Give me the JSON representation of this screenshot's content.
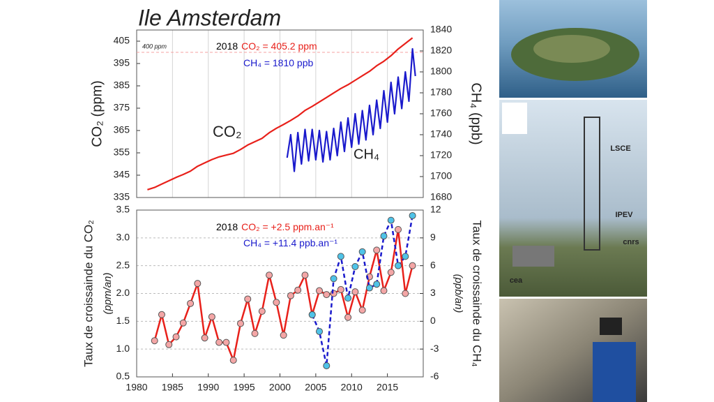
{
  "chart_data": [
    {
      "type": "line",
      "title": "Ile Amsterdam",
      "ylabel": [
        "CO₂ (ppm)"
      ],
      "y2label": [
        "CH₄ (ppb)"
      ],
      "xlim": [
        1980,
        2020
      ],
      "xticks": [
        1985,
        1990,
        1995,
        2000,
        2005,
        2010,
        2015
      ],
      "show_xtick_labels": false,
      "grid_x": true,
      "grid_y": false,
      "ylim": [
        335,
        410
      ],
      "yticks": [
        335,
        345,
        355,
        365,
        375,
        385,
        395,
        405
      ],
      "y2lim": [
        1680,
        1840
      ],
      "y2ticks": [
        1680,
        1700,
        1720,
        1740,
        1760,
        1780,
        1800,
        1820,
        1840
      ],
      "reference_lines": [
        {
          "value": 400,
          "label": "400 ppm",
          "color": "#f4a0a0"
        }
      ],
      "annotations": [
        {
          "parts": [
            "2018",
            "CO₂ = 405.2 ppm"
          ],
          "colors": [
            "#000000",
            "#e8201a"
          ]
        },
        {
          "parts": [
            "CH₄ = 1810 ppb"
          ],
          "colors": [
            "#1a1acc"
          ]
        }
      ],
      "series": [
        {
          "name": "CO₂",
          "color": "#e8201a",
          "axis": "y",
          "x": [
            1981.5,
            1982.5,
            1983.5,
            1984.5,
            1985.5,
            1986.5,
            1987.5,
            1988.5,
            1989.5,
            1990.5,
            1991.5,
            1992.5,
            1993.5,
            1994.5,
            1995.5,
            1996.5,
            1997.5,
            1998.5,
            1999.5,
            2000.5,
            2001.5,
            2002.5,
            2003.5,
            2004.5,
            2005.5,
            2006.5,
            2007.5,
            2008.5,
            2009.5,
            2010.5,
            2011.5,
            2012.5,
            2013.5,
            2014.5,
            2015.5,
            2016.5,
            2017.5,
            2018.5
          ],
          "values": [
            338.5,
            339.5,
            341,
            342.5,
            344,
            345.3,
            346.8,
            349,
            350.5,
            352,
            353.2,
            354,
            354.8,
            356.5,
            358.5,
            360,
            361.5,
            364,
            366,
            367.7,
            369.5,
            371.5,
            374,
            375.8,
            377.8,
            379.8,
            381.8,
            383.8,
            385.5,
            387.5,
            389.5,
            391.5,
            394,
            396,
            398.5,
            401.5,
            404,
            406.5
          ]
        },
        {
          "name": "CH₄",
          "color": "#1a1acc",
          "axis": "y2",
          "x": [
            2001,
            2001.5,
            2002,
            2002.5,
            2003,
            2003.5,
            2004,
            2004.5,
            2005,
            2005.5,
            2006,
            2006.5,
            2007,
            2007.5,
            2008,
            2008.5,
            2009,
            2009.5,
            2010,
            2010.5,
            2011,
            2011.5,
            2012,
            2012.5,
            2013,
            2013.5,
            2014,
            2014.5,
            2015,
            2015.5,
            2016,
            2016.5,
            2017,
            2017.5,
            2018,
            2018.5,
            2018.9
          ],
          "values": [
            1718,
            1740,
            1705,
            1742,
            1712,
            1745,
            1715,
            1745,
            1716,
            1744,
            1714,
            1743,
            1716,
            1746,
            1720,
            1752,
            1724,
            1756,
            1728,
            1760,
            1731,
            1763,
            1735,
            1768,
            1740,
            1773,
            1746,
            1782,
            1752,
            1790,
            1760,
            1795,
            1765,
            1800,
            1772,
            1822,
            1796
          ]
        }
      ]
    },
    {
      "type": "line",
      "ylabel": [
        "Taux de croissainde du CO₂",
        "(ppm/an)"
      ],
      "y2label": [
        "Taux de croissainde du CH₄",
        "(ppb/an)"
      ],
      "xlim": [
        1980,
        2020
      ],
      "xticks": [
        1980,
        1985,
        1990,
        1995,
        2000,
        2005,
        2010,
        2015
      ],
      "show_xtick_labels": true,
      "grid_x": false,
      "grid_y": true,
      "ylim": [
        0.5,
        3.5
      ],
      "yticks": [
        0.5,
        {
          "value": 1,
          "label": "1.0"
        },
        1.5,
        {
          "value": 2,
          "label": "2.0"
        },
        2.5,
        {
          "value": 3,
          "label": "3.0"
        },
        3.5
      ],
      "y2lim": [
        -6,
        12
      ],
      "y2ticks": [
        -6,
        -3,
        0,
        3,
        6,
        9,
        12
      ],
      "annotations": [
        {
          "parts": [
            "2018",
            "CO₂ = +2.5 ppm.an⁻¹"
          ],
          "colors": [
            "#000000",
            "#e8201a"
          ]
        },
        {
          "parts": [
            "CH₄ = +11.4 ppb.an⁻¹"
          ],
          "colors": [
            "#1a1acc"
          ]
        }
      ],
      "series": [
        {
          "name": "CO₂",
          "color": "#e8201a",
          "marker_color": "#f4a6a6",
          "axis": "y",
          "dash": false,
          "x": [
            1982.5,
            1983.5,
            1984.5,
            1985.5,
            1986.5,
            1987.5,
            1988.5,
            1989.5,
            1990.5,
            1991.5,
            1992.5,
            1993.5,
            1994.5,
            1995.5,
            1996.5,
            1997.5,
            1998.5,
            1999.5,
            2000.5,
            2001.5,
            2002.5,
            2003.5,
            2004.5,
            2005.5,
            2006.5,
            2007.5,
            2008.5,
            2009.5,
            2010.5,
            2011.5,
            2012.5,
            2013.5,
            2014.5,
            2015.5,
            2016.5,
            2017.5,
            2018.5
          ],
          "values": [
            1.15,
            1.62,
            1.08,
            1.22,
            1.47,
            1.82,
            2.18,
            1.2,
            1.58,
            1.12,
            1.12,
            0.8,
            1.46,
            1.9,
            1.28,
            1.68,
            2.33,
            1.84,
            1.25,
            1.96,
            2.06,
            2.33,
            1.62,
            2.05,
            1.98,
            2.0,
            2.07,
            1.57,
            2.03,
            1.7,
            2.3,
            2.78,
            2.05,
            2.38,
            3.15,
            2.0,
            2.5
          ]
        },
        {
          "name": "CH₄",
          "color": "#1a1acc",
          "marker_color": "#4fc3e8",
          "axis": "y2",
          "dash": true,
          "x": [
            2004.5,
            2005.5,
            2006.5,
            2007.5,
            2008.5,
            2009.5,
            2010.5,
            2011.5,
            2012.5,
            2013.5,
            2014.5,
            2015.5,
            2016.5,
            2017.5,
            2018.5
          ],
          "values": [
            0.7,
            -1.1,
            -4.8,
            4.6,
            7.0,
            2.5,
            5.9,
            7.5,
            3.6,
            4.0,
            9.2,
            10.9,
            6.0,
            7.0,
            11.4
          ]
        }
      ]
    }
  ],
  "logos": [
    "LSCE",
    "IPEV",
    "cnrs",
    "cea"
  ]
}
